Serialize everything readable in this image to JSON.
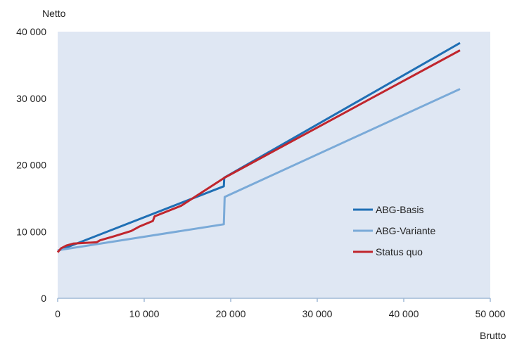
{
  "chart_data": {
    "type": "line",
    "title": "",
    "xlabel": "Brutto",
    "ylabel": "Netto",
    "xlim": [
      0,
      50000
    ],
    "ylim": [
      0,
      40000
    ],
    "xticks": [
      0,
      10000,
      20000,
      30000,
      40000,
      50000
    ],
    "yticks": [
      0,
      10000,
      20000,
      30000,
      40000
    ],
    "xtick_labels": [
      "0",
      "10 000",
      "20 000",
      "30 000",
      "40 000",
      "50 000"
    ],
    "ytick_labels": [
      "0",
      "10 000",
      "20 000",
      "30 000",
      "40 000"
    ],
    "grid": false,
    "plot_background": "#dfe7f3",
    "legend_position": "right",
    "series": [
      {
        "name": "ABG-Basis",
        "color": "#1f6fb4",
        "points": [
          [
            0,
            7100
          ],
          [
            19200,
            16800
          ],
          [
            19250,
            18100
          ],
          [
            46500,
            38300
          ]
        ]
      },
      {
        "name": "ABG-Variante",
        "color": "#7aaad8",
        "points": [
          [
            0,
            7200
          ],
          [
            19200,
            11100
          ],
          [
            19300,
            15200
          ],
          [
            46500,
            31400
          ]
        ]
      },
      {
        "name": "Status quo",
        "color": "#c0262d",
        "points": [
          [
            0,
            6900
          ],
          [
            400,
            7500
          ],
          [
            1000,
            7900
          ],
          [
            1800,
            8200
          ],
          [
            3000,
            8300
          ],
          [
            4500,
            8400
          ],
          [
            4900,
            8700
          ],
          [
            6500,
            9300
          ],
          [
            8500,
            10100
          ],
          [
            9500,
            10800
          ],
          [
            11000,
            11600
          ],
          [
            11200,
            12300
          ],
          [
            14300,
            13900
          ],
          [
            19300,
            18100
          ],
          [
            46500,
            37200
          ]
        ]
      }
    ]
  }
}
